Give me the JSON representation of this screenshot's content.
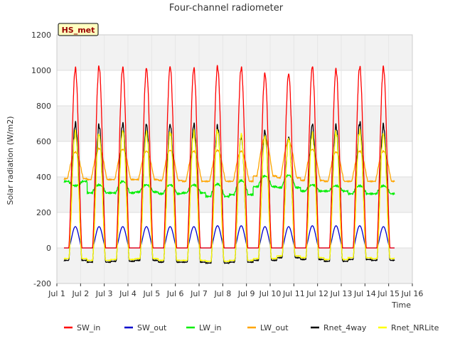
{
  "chart_data": {
    "type": "line",
    "title": "Four-channel radiometer",
    "xlabel": "Time",
    "ylabel": "Solar radiation (W/m2)",
    "site_label": "HS_met",
    "ylim": [
      -200,
      1200
    ],
    "xlim": [
      1,
      16
    ],
    "yticks": [
      -200,
      0,
      200,
      400,
      600,
      800,
      1000,
      1200
    ],
    "xticks": [
      {
        "value": 1,
        "label": "Jul 1"
      },
      {
        "value": 2,
        "label": "Jul 2"
      },
      {
        "value": 3,
        "label": "Jul 3"
      },
      {
        "value": 4,
        "label": "Jul 4"
      },
      {
        "value": 5,
        "label": "Jul 5"
      },
      {
        "value": 6,
        "label": "Jul 6"
      },
      {
        "value": 7,
        "label": "Jul 7"
      },
      {
        "value": 8,
        "label": "Jul 8"
      },
      {
        "value": 9,
        "label": "Jul 9"
      },
      {
        "value": 10,
        "label": "Jul 10"
      },
      {
        "value": 11,
        "label": "Jul 11"
      },
      {
        "value": 12,
        "label": "Jul 12"
      },
      {
        "value": 13,
        "label": "Jul 13"
      },
      {
        "value": 14,
        "label": "Jul 14"
      },
      {
        "value": 15,
        "label": "Jul 15"
      },
      {
        "value": 16,
        "label": "Jul 16"
      }
    ],
    "data_start_day": 1.3,
    "data_end_day": 15.25,
    "daily_peaks": {
      "days": [
        1.78,
        2.78,
        3.78,
        4.78,
        5.78,
        6.78,
        7.78,
        8.78,
        9.78,
        10.78,
        11.78,
        12.78,
        13.78,
        14.78
      ],
      "SW_in": [
        1010,
        1020,
        1015,
        1010,
        1020,
        1010,
        1020,
        1015,
        980,
        980,
        1020,
        1005,
        1020,
        1015
      ],
      "SW_out": [
        120,
        120,
        120,
        120,
        120,
        120,
        125,
        125,
        120,
        120,
        125,
        125,
        125,
        120
      ],
      "LW_in_day": [
        350,
        355,
        375,
        355,
        355,
        355,
        360,
        380,
        405,
        410,
        355,
        350,
        350,
        350
      ],
      "LW_in_night": [
        375,
        310,
        310,
        315,
        305,
        310,
        290,
        300,
        345,
        340,
        320,
        320,
        305,
        305
      ],
      "LW_out_day": [
        540,
        560,
        555,
        545,
        550,
        545,
        550,
        545,
        620,
        600,
        555,
        540,
        545,
        545
      ],
      "LW_out_night": [
        390,
        385,
        385,
        385,
        380,
        375,
        375,
        375,
        405,
        395,
        380,
        375,
        375,
        375
      ],
      "Rnet_4way": [
        700,
        690,
        700,
        695,
        695,
        695,
        685,
        630,
        655,
        625,
        695,
        690,
        705,
        690
      ],
      "Rnet_NRLite": [
        650,
        640,
        660,
        650,
        650,
        650,
        660,
        640,
        630,
        615,
        640,
        650,
        660,
        640
      ],
      "Rnet_night": [
        -70,
        -80,
        -75,
        -70,
        -80,
        -80,
        -85,
        -80,
        -70,
        -55,
        -65,
        -75,
        -65,
        -70
      ]
    },
    "series": [
      {
        "name": "SW_in",
        "color": "#ff0000"
      },
      {
        "name": "SW_out",
        "color": "#0000cc"
      },
      {
        "name": "LW_in",
        "color": "#00ee00"
      },
      {
        "name": "LW_out",
        "color": "#ffa500"
      },
      {
        "name": "Rnet_4way",
        "color": "#000000"
      },
      {
        "name": "Rnet_NRLite",
        "color": "#ffff00"
      }
    ]
  }
}
